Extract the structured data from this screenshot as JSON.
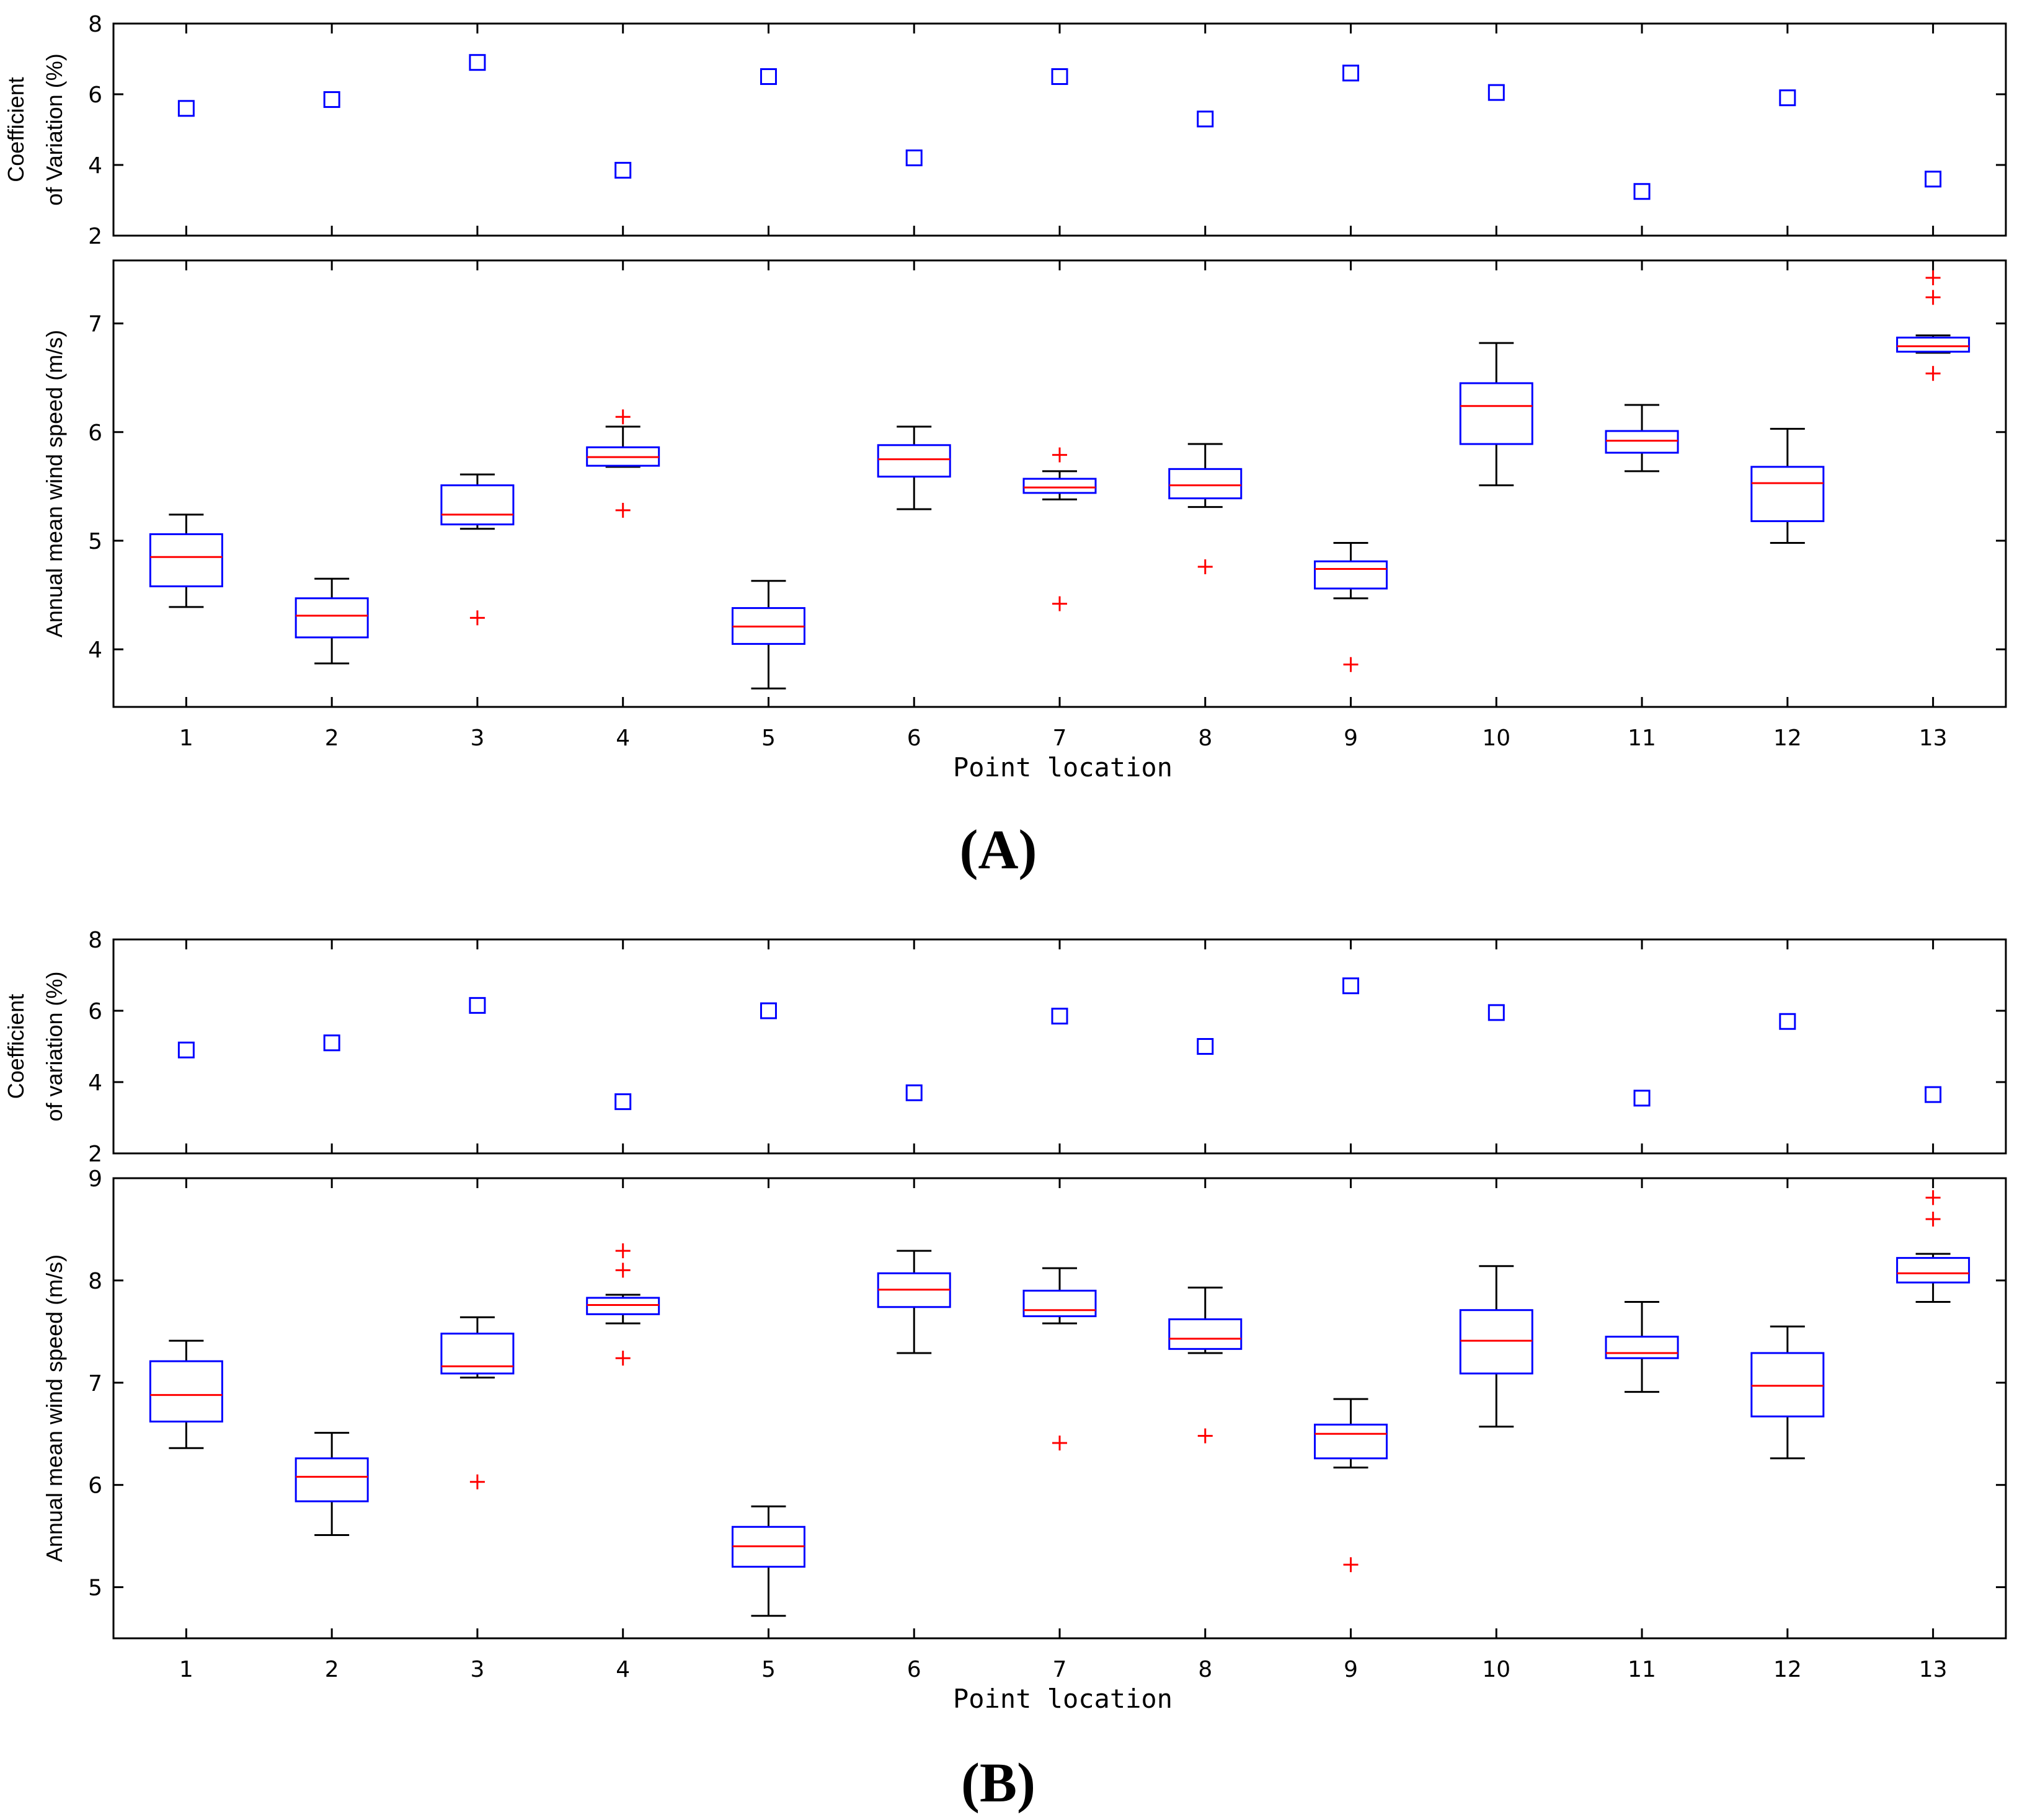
{
  "figure": {
    "panel_a_label": "(A)",
    "panel_b_label": "(B)",
    "colors": {
      "marker": "#0000ff",
      "median": "#ff0000",
      "outlier": "#ff0000",
      "whisker": "#000000",
      "axis": "#000000"
    }
  },
  "chart_data": [
    {
      "id": "A-cv",
      "type": "scatter",
      "title": "",
      "xlabel": "",
      "ylabel_lines": [
        "Coefficient",
        "of Variation (%)"
      ],
      "xlim": [
        0.5,
        13.5
      ],
      "ylim": [
        2,
        8
      ],
      "yticks": [
        2,
        4,
        6,
        8
      ],
      "x": [
        1,
        2,
        3,
        4,
        5,
        6,
        7,
        8,
        9,
        10,
        11,
        12,
        13
      ],
      "y": [
        5.6,
        5.85,
        6.9,
        3.85,
        6.5,
        4.2,
        6.5,
        5.3,
        6.6,
        6.05,
        3.25,
        5.9,
        3.6
      ],
      "marker": "square"
    },
    {
      "id": "A-box",
      "type": "box",
      "xlabel": "Point location",
      "ylabel": "Annual mean wind speed (m/s)",
      "xlim": [
        0.5,
        13.5
      ],
      "ylim": [
        3.47,
        7.58
      ],
      "yticks": [
        4,
        5,
        6,
        7
      ],
      "categories": [
        "1",
        "2",
        "3",
        "4",
        "5",
        "6",
        "7",
        "8",
        "9",
        "10",
        "11",
        "12",
        "13"
      ],
      "boxes": [
        {
          "low": 4.39,
          "q1": 4.58,
          "median": 4.85,
          "q3": 5.06,
          "high": 5.24,
          "outliers": []
        },
        {
          "low": 3.87,
          "q1": 4.11,
          "median": 4.31,
          "q3": 4.47,
          "high": 4.65,
          "outliers": []
        },
        {
          "low": 5.11,
          "q1": 5.15,
          "median": 5.24,
          "q3": 5.51,
          "high": 5.61,
          "outliers": [
            4.29
          ]
        },
        {
          "low": 5.68,
          "q1": 5.69,
          "median": 5.77,
          "q3": 5.86,
          "high": 6.05,
          "outliers": [
            6.14,
            5.28
          ]
        },
        {
          "low": 3.64,
          "q1": 4.05,
          "median": 4.21,
          "q3": 4.38,
          "high": 4.63,
          "outliers": []
        },
        {
          "low": 5.29,
          "q1": 5.59,
          "median": 5.75,
          "q3": 5.88,
          "high": 6.05,
          "outliers": []
        },
        {
          "low": 5.38,
          "q1": 5.44,
          "median": 5.49,
          "q3": 5.57,
          "high": 5.64,
          "outliers": [
            5.79,
            4.42
          ]
        },
        {
          "low": 5.31,
          "q1": 5.39,
          "median": 5.51,
          "q3": 5.66,
          "high": 5.89,
          "outliers": [
            4.76
          ]
        },
        {
          "low": 4.47,
          "q1": 4.56,
          "median": 4.74,
          "q3": 4.81,
          "high": 4.98,
          "outliers": [
            3.86
          ]
        },
        {
          "low": 5.51,
          "q1": 5.89,
          "median": 6.24,
          "q3": 6.45,
          "high": 6.82,
          "outliers": []
        },
        {
          "low": 5.64,
          "q1": 5.81,
          "median": 5.92,
          "q3": 6.01,
          "high": 6.25,
          "outliers": []
        },
        {
          "low": 4.98,
          "q1": 5.18,
          "median": 5.53,
          "q3": 5.68,
          "high": 6.03,
          "outliers": []
        },
        {
          "low": 6.73,
          "q1": 6.74,
          "median": 6.79,
          "q3": 6.87,
          "high": 6.89,
          "outliers": [
            7.42,
            7.24,
            6.54
          ]
        }
      ]
    },
    {
      "id": "B-cv",
      "type": "scatter",
      "title": "",
      "xlabel": "",
      "ylabel_lines": [
        "Coefficient",
        "of variation (%)"
      ],
      "xlim": [
        0.5,
        13.5
      ],
      "ylim": [
        2,
        8
      ],
      "yticks": [
        2,
        4,
        6,
        8
      ],
      "x": [
        1,
        2,
        3,
        4,
        5,
        6,
        7,
        8,
        9,
        10,
        11,
        12,
        13
      ],
      "y": [
        4.9,
        5.1,
        6.15,
        3.45,
        6.0,
        3.7,
        5.85,
        5.0,
        6.7,
        5.95,
        3.55,
        5.7,
        3.65
      ],
      "marker": "square"
    },
    {
      "id": "B-box",
      "type": "box",
      "xlabel": "Point location",
      "ylabel": "Annual mean wind speed (m/s)",
      "xlim": [
        0.5,
        13.5
      ],
      "ylim": [
        4.5,
        9.0
      ],
      "yticks": [
        5,
        6,
        7,
        8,
        9
      ],
      "categories": [
        "1",
        "2",
        "3",
        "4",
        "5",
        "6",
        "7",
        "8",
        "9",
        "10",
        "11",
        "12",
        "13"
      ],
      "boxes": [
        {
          "low": 6.36,
          "q1": 6.62,
          "median": 6.88,
          "q3": 7.21,
          "high": 7.41,
          "outliers": []
        },
        {
          "low": 5.51,
          "q1": 5.84,
          "median": 6.08,
          "q3": 6.26,
          "high": 6.51,
          "outliers": []
        },
        {
          "low": 7.05,
          "q1": 7.09,
          "median": 7.16,
          "q3": 7.48,
          "high": 7.64,
          "outliers": [
            6.03
          ]
        },
        {
          "low": 7.58,
          "q1": 7.67,
          "median": 7.76,
          "q3": 7.83,
          "high": 7.86,
          "outliers": [
            8.29,
            8.1,
            7.24
          ]
        },
        {
          "low": 4.72,
          "q1": 5.2,
          "median": 5.4,
          "q3": 5.59,
          "high": 5.79,
          "outliers": []
        },
        {
          "low": 7.29,
          "q1": 7.74,
          "median": 7.91,
          "q3": 8.07,
          "high": 8.29,
          "outliers": []
        },
        {
          "low": 7.58,
          "q1": 7.65,
          "median": 7.71,
          "q3": 7.9,
          "high": 8.12,
          "outliers": [
            6.41
          ]
        },
        {
          "low": 7.29,
          "q1": 7.33,
          "median": 7.43,
          "q3": 7.62,
          "high": 7.93,
          "outliers": [
            6.48
          ]
        },
        {
          "low": 6.17,
          "q1": 6.26,
          "median": 6.5,
          "q3": 6.59,
          "high": 6.84,
          "outliers": [
            5.22
          ]
        },
        {
          "low": 6.57,
          "q1": 7.09,
          "median": 7.41,
          "q3": 7.71,
          "high": 8.14,
          "outliers": []
        },
        {
          "low": 6.91,
          "q1": 7.24,
          "median": 7.29,
          "q3": 7.45,
          "high": 7.79,
          "outliers": []
        },
        {
          "low": 6.26,
          "q1": 6.67,
          "median": 6.97,
          "q3": 7.29,
          "high": 7.55,
          "outliers": []
        },
        {
          "low": 7.79,
          "q1": 7.98,
          "median": 8.07,
          "q3": 8.22,
          "high": 8.26,
          "outliers": [
            8.81,
            8.6
          ]
        }
      ]
    }
  ]
}
